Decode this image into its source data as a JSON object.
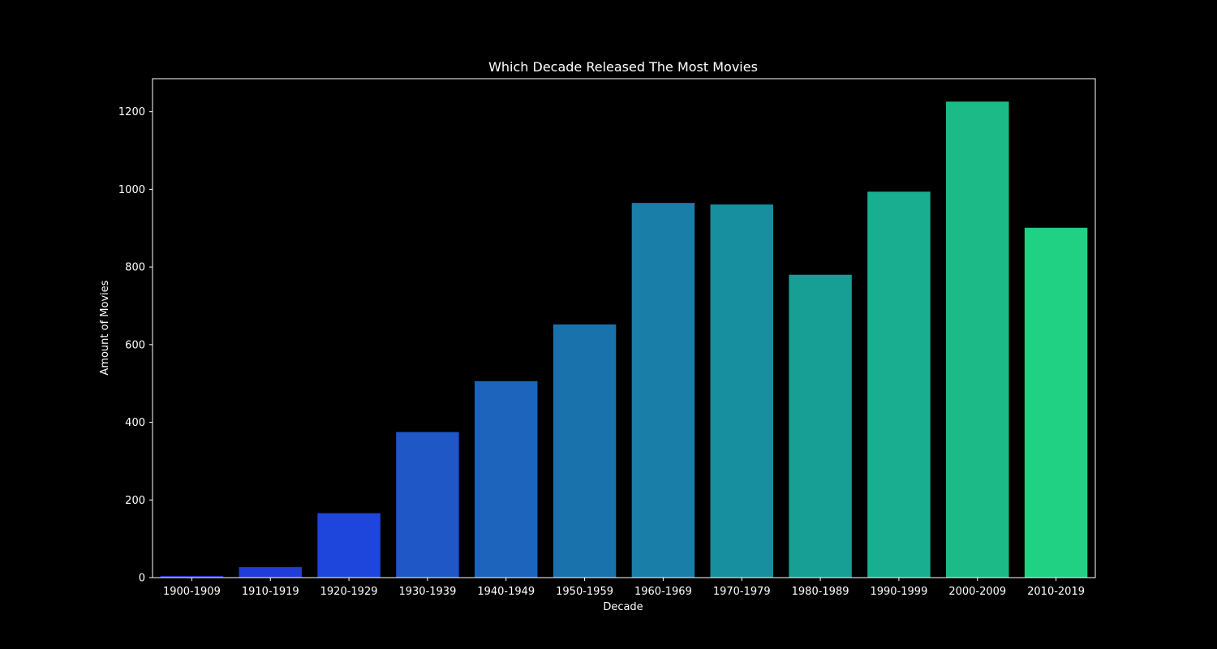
{
  "chart_data": {
    "type": "bar",
    "title": "Which Decade Released The Most Movies",
    "xlabel": "Decade",
    "ylabel": "Amount of Movies",
    "categories": [
      "1900-1909",
      "1910-1919",
      "1920-1929",
      "1930-1939",
      "1940-1949",
      "1950-1959",
      "1960-1969",
      "1970-1979",
      "1980-1989",
      "1990-1999",
      "2000-2009",
      "2010-2019"
    ],
    "values": [
      4,
      27,
      166,
      375,
      506,
      652,
      965,
      961,
      780,
      994,
      1226,
      901
    ],
    "colors": [
      "#2a33e8",
      "#223cdc",
      "#1e46dc",
      "#1f57c6",
      "#1d64bc",
      "#1a72ac",
      "#1a7fa8",
      "#188f9f",
      "#179e95",
      "#1aae91",
      "#1cba87",
      "#20d083"
    ],
    "ylim": [
      0,
      1285
    ],
    "yticks": [
      0,
      200,
      400,
      600,
      800,
      1000,
      1200
    ],
    "grid": false,
    "legend": "none",
    "background": "#000000",
    "text_color": "#ffffff"
  }
}
